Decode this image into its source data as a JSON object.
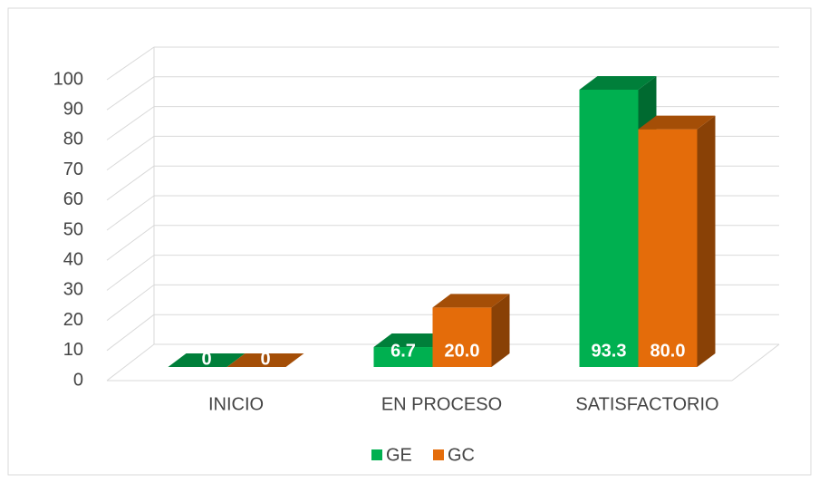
{
  "chart_data": {
    "type": "bar3d",
    "categories": [
      "INICIO",
      "EN PROCESO",
      "SATISFACTORIO"
    ],
    "series": [
      {
        "name": "GE",
        "color": "#00b050",
        "values": [
          0,
          6.7,
          93.3
        ],
        "value_labels": [
          "0",
          "6.7",
          "93.3"
        ]
      },
      {
        "name": "GC",
        "color": "#e46c0a",
        "values": [
          0,
          20.0,
          80.0
        ],
        "value_labels": [
          "0",
          "20.0",
          "80.0"
        ]
      }
    ],
    "ylim": [
      0,
      100
    ],
    "yticks": [
      0,
      10,
      20,
      30,
      40,
      50,
      60,
      70,
      80,
      90,
      100
    ],
    "grid": true,
    "legend": "bottom"
  }
}
